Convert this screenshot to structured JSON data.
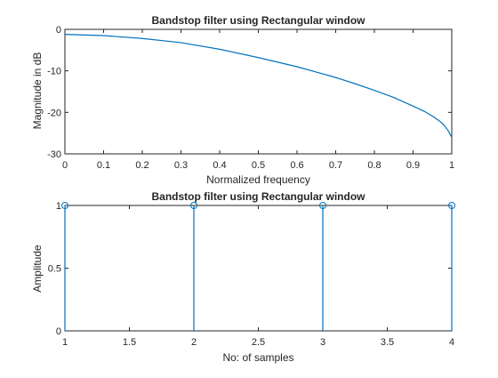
{
  "chart_data": [
    {
      "type": "line",
      "title": "Bandstop filter using Rectangular window",
      "xlabel": "Normalized frequency",
      "ylabel": "Magnitude in dB",
      "xlim": [
        0,
        1
      ],
      "ylim": [
        -30,
        0
      ],
      "xticks": [
        "0",
        "0.1",
        "0.2",
        "0.3",
        "0.4",
        "0.5",
        "0.6",
        "0.7",
        "0.8",
        "0.9",
        "1"
      ],
      "yticks": [
        "0",
        "-10",
        "-20",
        "-30"
      ],
      "color": "#0072BD",
      "x": [
        0,
        0.1,
        0.2,
        0.3,
        0.4,
        0.5,
        0.55,
        0.6,
        0.65,
        0.7,
        0.75,
        0.8,
        0.85,
        0.9,
        0.93,
        0.95,
        0.97,
        0.98,
        0.99,
        1.0
      ],
      "y": [
        -1.2,
        -1.5,
        -2.2,
        -3.2,
        -4.8,
        -6.8,
        -7.9,
        -9.0,
        -10.3,
        -11.6,
        -13.1,
        -14.7,
        -16.4,
        -18.5,
        -19.8,
        -20.9,
        -22.2,
        -23.1,
        -24.3,
        -26.0
      ]
    },
    {
      "type": "stem",
      "title": "Bandstop filter using Rectangular window",
      "xlabel": "No: of samples",
      "ylabel": "Amplitude",
      "xlim": [
        1,
        4
      ],
      "ylim": [
        0,
        1
      ],
      "xticks": [
        "1",
        "1.5",
        "2",
        "2.5",
        "3",
        "3.5",
        "4"
      ],
      "yticks": [
        "0",
        "0.5",
        "1"
      ],
      "color": "#0072BD",
      "x": [
        1,
        2,
        3,
        4
      ],
      "y": [
        1,
        1,
        1,
        1
      ]
    }
  ]
}
